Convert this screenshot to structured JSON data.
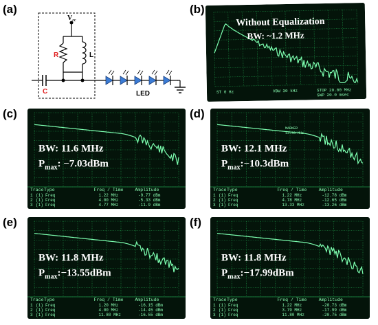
{
  "panels": {
    "a": {
      "label": "(a)",
      "vcc": "V",
      "vcc_sub": "cc",
      "r_label": "R",
      "l_label": "L",
      "c_label": "C",
      "led_label": "LED",
      "colors": {
        "r": "#e02020",
        "c": "#e02020",
        "led": "#3a7bd5",
        "wire": "#000000"
      }
    },
    "b": {
      "label": "(b)",
      "line1": "Without Equalization",
      "line2": "BW: ~1.2 MHz",
      "footer_left": "ST 0 Hz",
      "footer_mid": "VBW 30 kHz",
      "footer_right": "STOP 20.00 MHz",
      "footer_right2": "SWP 20.0 msec"
    },
    "c": {
      "label": "(c)",
      "bw": "BW: 11.6 MHz",
      "pmax_p": "P",
      "pmax_sub": "max",
      "pmax_val": ": −7.03dBm",
      "table_headers": [
        "Trace",
        "Type",
        "Freq / Time",
        "Amplitude"
      ],
      "rows": [
        [
          "1",
          "(1)",
          "Freq",
          "1.22 MHz",
          "-9.77 dBm"
        ],
        [
          "2",
          "(1)",
          "Freq",
          "4.00 MHz",
          "-5.33 dBm"
        ],
        [
          "3",
          "(1)",
          "Freq",
          "4.77 MHz",
          "-11.9 dBm"
        ]
      ]
    },
    "d": {
      "label": "(d)",
      "bw": "BW: 12.1 MHz",
      "pmax_p": "P",
      "pmax_sub": "max",
      "pmax_val": ":−10.3dBm",
      "marker_text": "MARKER",
      "marker_val": "13.33 MHz",
      "table_headers": [
        "Trace",
        "Type",
        "Freq / Time",
        "Amplitude"
      ],
      "rows": [
        [
          "1",
          "(1)",
          "Freq",
          "1.22 MHz",
          "-12.78 dBm"
        ],
        [
          "2",
          "(1)",
          "Freq",
          "4.78 MHz",
          "-12.65 dBm"
        ],
        [
          "3",
          "(1)",
          "Freq",
          "13.33 MHz",
          "-13.26 dBm"
        ]
      ]
    },
    "e": {
      "label": "(e)",
      "bw": "BW: 11.8 MHz",
      "pmax_p": "P",
      "pmax_sub": "max",
      "pmax_val": ":−13.55dBm",
      "table_headers": [
        "Trace",
        "Type",
        "Freq / Time",
        "Amplitude"
      ],
      "rows": [
        [
          "1",
          "(1)",
          "Freq",
          "1.20 MHz",
          "-16.15 dBm"
        ],
        [
          "2",
          "(1)",
          "Freq",
          "4.00 MHz",
          "-14.45 dBm"
        ],
        [
          "3",
          "(1)",
          "Freq",
          "11.80 MHz",
          "-16.55 dBm"
        ]
      ]
    },
    "f": {
      "label": "(f)",
      "bw": "BW: 11.8 MHz",
      "pmax_p": "P",
      "pmax_sub": "max",
      "pmax_val": ":−17.99dBm",
      "table_headers": [
        "Trace",
        "Type",
        "Freq / Time",
        "Amplitude"
      ],
      "rows": [
        [
          "1",
          "(1)",
          "Freq",
          "1.22 MHz",
          "-20.73 dBm"
        ],
        [
          "2",
          "(1)",
          "Freq",
          "3.79 MHz",
          "-17.99 dBm"
        ],
        [
          "3",
          "(1)",
          "Freq",
          "11.80 MHz",
          "-20.75 dBm"
        ]
      ]
    }
  },
  "colors": {
    "screen_bg": "#04140a",
    "grid": "#1f9a4a",
    "trace": "#7dffb0",
    "text": "#ffffff",
    "table_text": "#8cffb4"
  }
}
